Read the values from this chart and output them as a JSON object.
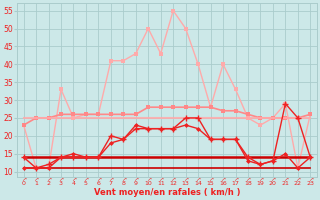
{
  "x": [
    0,
    1,
    2,
    3,
    4,
    5,
    6,
    7,
    8,
    9,
    10,
    11,
    12,
    13,
    14,
    15,
    16,
    17,
    18,
    19,
    20,
    21,
    22,
    23
  ],
  "line_rafales_light": [
    23,
    11,
    11,
    33,
    25,
    26,
    26,
    41,
    41,
    43,
    50,
    43,
    55,
    50,
    40,
    28,
    40,
    33,
    25,
    23,
    25,
    29,
    11,
    26
  ],
  "line_moyen_light": [
    23,
    25,
    25,
    26,
    26,
    26,
    26,
    26,
    26,
    26,
    28,
    28,
    28,
    28,
    28,
    28,
    27,
    27,
    26,
    25,
    25,
    25,
    25,
    26
  ],
  "line_flat_medium": [
    25,
    25,
    25,
    25,
    25,
    25,
    25,
    25,
    25,
    25,
    25,
    25,
    25,
    25,
    25,
    25,
    25,
    25,
    25,
    25,
    25,
    25,
    25,
    25
  ],
  "line_rafales_red": [
    14,
    11,
    12,
    14,
    14,
    14,
    14,
    20,
    19,
    22,
    22,
    22,
    22,
    25,
    25,
    19,
    19,
    19,
    14,
    12,
    13,
    29,
    25,
    14
  ],
  "line_moyen_red": [
    11,
    11,
    11,
    14,
    15,
    14,
    14,
    18,
    19,
    23,
    22,
    22,
    22,
    23,
    22,
    19,
    19,
    19,
    13,
    12,
    13,
    15,
    11,
    14
  ],
  "line_flat_dark1": [
    14,
    14,
    14,
    14,
    14,
    14,
    14,
    14,
    14,
    14,
    14,
    14,
    14,
    14,
    14,
    14,
    14,
    14,
    14,
    14,
    14,
    14,
    14,
    14
  ],
  "line_flat_dark2": [
    11,
    11,
    11,
    11,
    11,
    11,
    11,
    11,
    11,
    11,
    11,
    11,
    11,
    11,
    11,
    11,
    11,
    11,
    11,
    11,
    11,
    11,
    11,
    11
  ],
  "bg_color": "#cce8e8",
  "grid_color": "#aacccc",
  "color_light_salmon": "#ffaaaa",
  "color_medium_pink": "#ff8888",
  "color_red": "#ee2222",
  "color_dark_red": "#cc0000",
  "xlabel": "Vent moyen/en rafales ( km/h )",
  "ylabel_ticks": [
    10,
    15,
    20,
    25,
    30,
    35,
    40,
    45,
    50,
    55
  ],
  "ylim": [
    8.5,
    57
  ],
  "xlim": [
    -0.5,
    23.5
  ]
}
